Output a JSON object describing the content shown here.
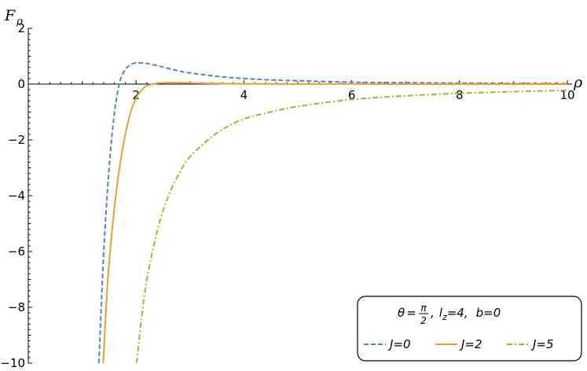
{
  "chart_data": {
    "type": "line",
    "xlabel": "ρ",
    "ylabel_main": "F",
    "ylabel_sub": "ρ",
    "xlim": [
      0,
      10
    ],
    "ylim": [
      -10,
      2
    ],
    "xticks_major": [
      2,
      4,
      6,
      8,
      10
    ],
    "xtick_labels": [
      "2",
      "4",
      "6",
      "8",
      "10"
    ],
    "yticks_major": [
      -10,
      -8,
      -6,
      -4,
      -2,
      0,
      2
    ],
    "ytick_labels": [
      "−10",
      "−8",
      "−6",
      "−4",
      "−2",
      "0",
      "2"
    ],
    "legend": {
      "placement": "bottom-right",
      "title_parts": {
        "theta": "θ",
        "eq1": "=",
        "frac_num": "π",
        "frac_den": "2",
        "sep1": ",",
        "lz_l": "l",
        "lz_sub": "z",
        "lz_val": "=4",
        "sep2": ",",
        "b_label": "b=0"
      }
    },
    "series": [
      {
        "name": "J=0",
        "color": "#5b82b8",
        "style": "dashed",
        "x": [
          1.31,
          1.4,
          1.5,
          1.6,
          1.7,
          1.8,
          1.9,
          2.0,
          2.1,
          2.2,
          2.4,
          2.6,
          2.8,
          3.0,
          3.5,
          4.0,
          4.5,
          5.0,
          6.0,
          7.0,
          8.0,
          9.0,
          10.0
        ],
        "values": [
          -10.0,
          -6.0,
          -3.0,
          -1.0,
          0.1,
          0.52,
          0.7,
          0.76,
          0.76,
          0.74,
          0.66,
          0.56,
          0.47,
          0.4,
          0.28,
          0.2,
          0.15,
          0.12,
          0.07,
          0.05,
          0.035,
          0.025,
          0.02
        ]
      },
      {
        "name": "J=2",
        "color": "#e8a02c",
        "style": "solid",
        "x": [
          1.39,
          1.45,
          1.5,
          1.6,
          1.7,
          1.8,
          1.9,
          2.0,
          2.1,
          2.2,
          2.4,
          2.6,
          2.8,
          3.0,
          3.5,
          4.0,
          5.0,
          6.0,
          8.0,
          10.0
        ],
        "values": [
          -10.0,
          -7.8,
          -6.4,
          -4.4,
          -2.9,
          -1.8,
          -1.0,
          -0.5,
          -0.22,
          -0.06,
          0.03,
          0.05,
          0.05,
          0.04,
          0.02,
          0.01,
          0.005,
          0.002,
          0.0,
          0.0
        ]
      },
      {
        "name": "J=5",
        "color": "#9bb830",
        "style": "dashdot",
        "x": [
          2.01,
          2.1,
          2.2,
          2.4,
          2.6,
          2.8,
          3.0,
          3.5,
          4.0,
          4.5,
          5.0,
          6.0,
          7.0,
          8.0,
          9.0,
          10.0
        ],
        "values": [
          -10.0,
          -8.4,
          -7.0,
          -5.2,
          -4.0,
          -3.2,
          -2.6,
          -1.75,
          -1.25,
          -1.0,
          -0.8,
          -0.55,
          -0.42,
          -0.33,
          -0.27,
          -0.22
        ]
      }
    ]
  }
}
